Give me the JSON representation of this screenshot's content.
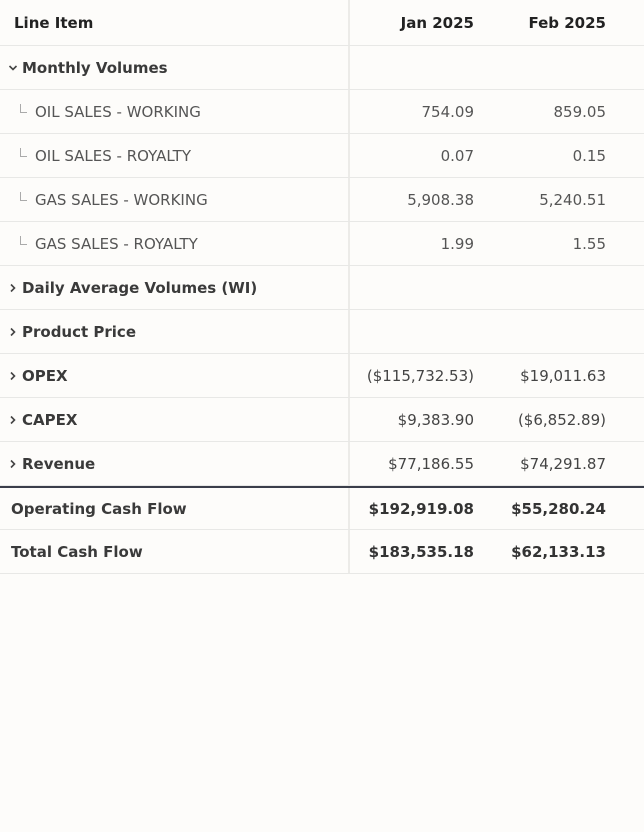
{
  "header": {
    "columns": [
      "Line Item",
      "Jan 2025",
      "Feb 2025"
    ]
  },
  "groups": [
    {
      "label": "Monthly Volumes",
      "expanded": true,
      "children": [
        {
          "label": "OIL SALES - WORKING",
          "cells": [
            "754.09",
            "859.05"
          ]
        },
        {
          "label": "OIL SALES - ROYALTY",
          "cells": [
            "0.07",
            "0.15"
          ]
        },
        {
          "label": "GAS SALES - WORKING",
          "cells": [
            "5,908.38",
            "5,240.51"
          ]
        },
        {
          "label": "GAS SALES - ROYALTY",
          "cells": [
            "1.99",
            "1.55"
          ]
        }
      ]
    },
    {
      "label": "Daily Average Volumes (WI)",
      "expanded": false
    },
    {
      "label": "Product Price",
      "expanded": false
    },
    {
      "label": "OPEX",
      "expanded": false,
      "cells": [
        "($115,732.53)",
        "$19,011.63"
      ]
    },
    {
      "label": "CAPEX",
      "expanded": false,
      "cells": [
        "$9,383.90",
        "($6,852.89)"
      ]
    },
    {
      "label": "Revenue",
      "expanded": false,
      "cells": [
        "$77,186.55",
        "$74,291.87"
      ]
    }
  ],
  "totals": [
    {
      "label": "Operating Cash Flow",
      "cells": [
        "$192,919.08",
        "$55,280.24"
      ]
    },
    {
      "label": "Total Cash Flow",
      "cells": [
        "$183,535.18",
        "$62,133.13"
      ]
    }
  ]
}
